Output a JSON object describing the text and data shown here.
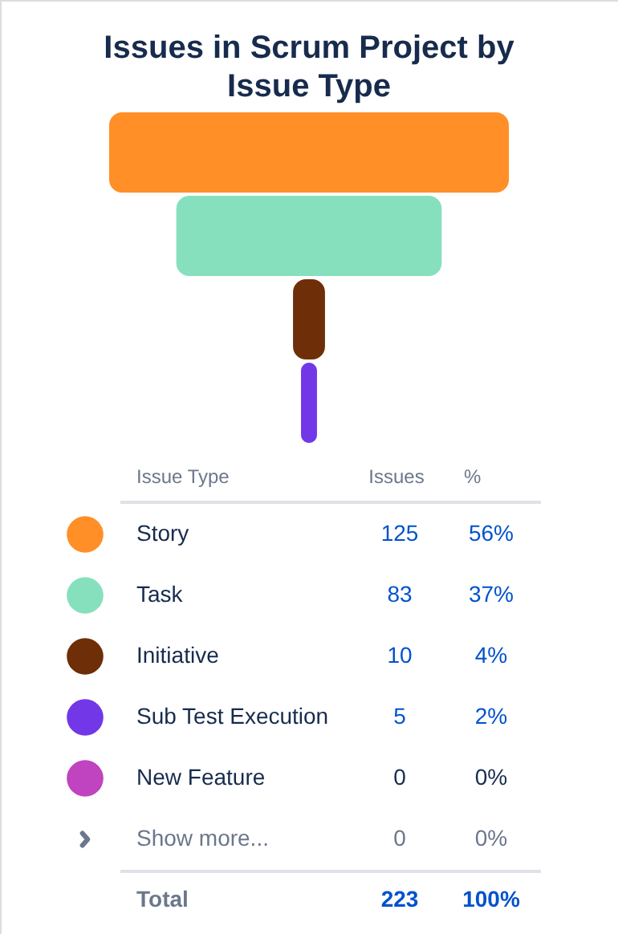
{
  "chart_data": {
    "type": "other",
    "title": "Issues in Scrum Project by Issue Type",
    "categories": [
      "Story",
      "Task",
      "Initiative",
      "Sub Test Execution",
      "New Feature",
      "Show more..."
    ],
    "values": [
      125,
      83,
      10,
      5,
      0,
      0
    ],
    "colors": [
      "#ff8f26",
      "#86e0bd",
      "#6e2e08",
      "#7238e8",
      "#c043c0",
      "#6b778c"
    ],
    "data_labels": true,
    "annotations": [
      "Issue Type",
      "Issues",
      "%",
      "56%",
      "37%",
      "4%",
      "2%",
      "0%",
      "0%",
      "Total",
      "223",
      "100%"
    ]
  }
}
